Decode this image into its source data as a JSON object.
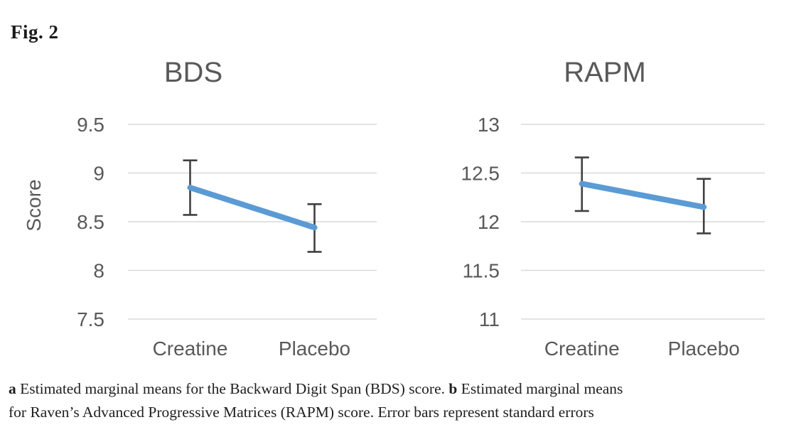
{
  "figure": {
    "label": "Fig. 2"
  },
  "caption": {
    "lines": [
      {
        "segments": [
          {
            "text": "a",
            "bold": true
          },
          {
            "text": " Estimated marginal means for the Backward Digit Span (BDS) score. ",
            "bold": false
          },
          {
            "text": "b",
            "bold": true
          },
          {
            "text": " Estimated marginal means",
            "bold": false
          }
        ]
      },
      {
        "segments": [
          {
            "text": "for Raven’s Advanced Progressive Matrices (RAPM) score. Error bars represent standard errors",
            "bold": false
          }
        ]
      }
    ]
  },
  "colors": {
    "line": "#5B9BD5",
    "error_bar": "#404040",
    "gridline": "#D9D9D9",
    "chart_text": "#595959",
    "caption_text": "#1f1f1f"
  },
  "chart_data": [
    {
      "id": "bds",
      "type": "line",
      "title": "BDS",
      "xlabel": "",
      "ylabel": "Score",
      "categories": [
        "Creatine",
        "Placebo"
      ],
      "series": [
        {
          "name": "Estimated marginal mean",
          "values": [
            8.85,
            8.44
          ],
          "error_upper": [
            9.13,
            8.68
          ],
          "error_lower": [
            8.57,
            8.19
          ]
        }
      ],
      "yticks": [
        9.5,
        9,
        8.5,
        8,
        7.5
      ],
      "ylim": [
        7.5,
        9.5
      ],
      "grid": true,
      "legend_position": "none",
      "error_bars": "standard errors"
    },
    {
      "id": "rapm",
      "type": "line",
      "title": "RAPM",
      "xlabel": "",
      "ylabel": "",
      "categories": [
        "Creatine",
        "Placebo"
      ],
      "series": [
        {
          "name": "Estimated marginal mean",
          "values": [
            12.39,
            12.15
          ],
          "error_upper": [
            12.66,
            12.44
          ],
          "error_lower": [
            12.11,
            11.88
          ]
        }
      ],
      "yticks": [
        13,
        12.5,
        12,
        11.5,
        11
      ],
      "ylim": [
        11,
        13
      ],
      "grid": true,
      "legend_position": "none",
      "error_bars": "standard errors"
    }
  ]
}
